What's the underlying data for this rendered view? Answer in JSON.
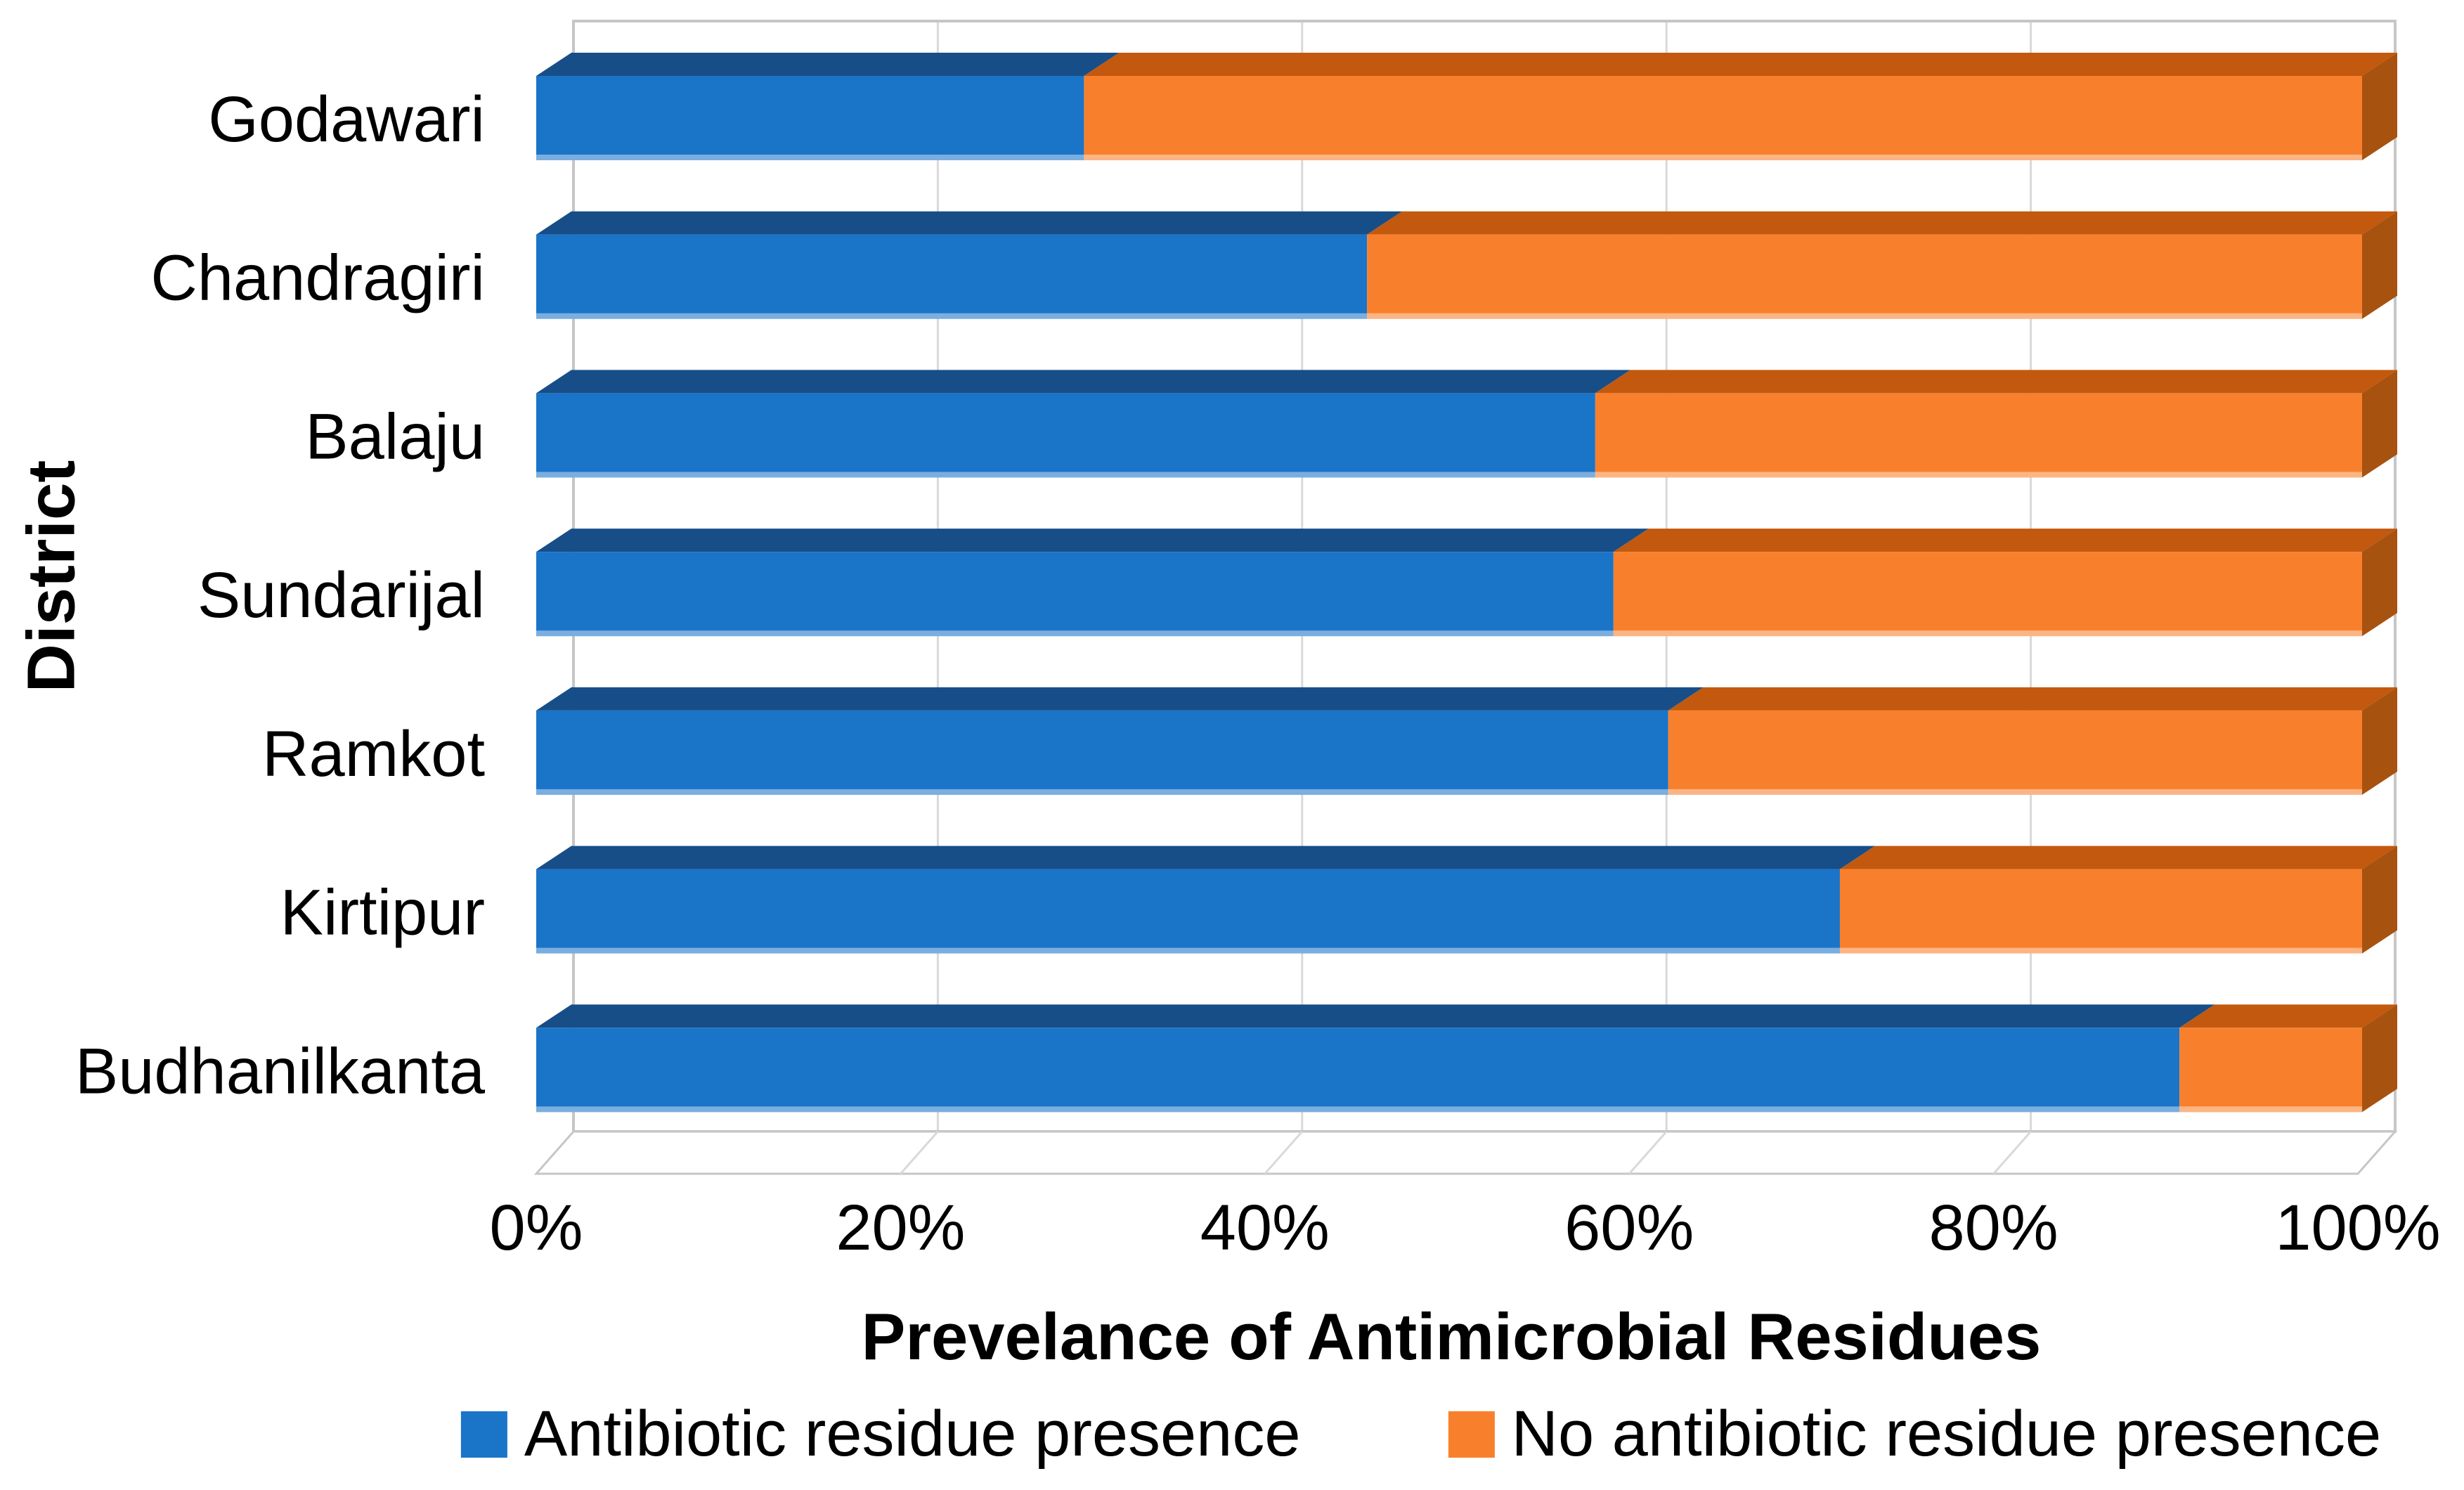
{
  "background": "#FFFFFF",
  "chart_data": {
    "type": "bar",
    "subtype": "stacked-100",
    "orientation": "horizontal",
    "style": "3d",
    "title": "",
    "xlabel": "Prevelance of Antimicrobial Residues",
    "ylabel": "District",
    "categories": [
      "Godawari",
      "Chandragiri",
      "Balaju",
      "Sundarijal",
      "Ramkot",
      "Kirtipur",
      "Budhanilkanta"
    ],
    "series": [
      {
        "name": "Antibiotic residue presence",
        "color": "#1A74C8",
        "color_top": "#174E88",
        "values": [
          30,
          45.5,
          58,
          59,
          62,
          71.4,
          90
        ]
      },
      {
        "name": "No antibiotic residue presence",
        "color": "#F8802D",
        "color_top": "#C2590E",
        "color_cap": "#A85210",
        "values": [
          70,
          54.5,
          42,
          41,
          38,
          28.6,
          10
        ]
      }
    ],
    "x_ticks": [
      "0%",
      "20%",
      "40%",
      "60%",
      "80%",
      "100%"
    ],
    "xlim": [
      0,
      100
    ],
    "grid": true,
    "gridline_color": "#D9D9D9",
    "wall_color": "#C6C6C6",
    "legend_position": "bottom"
  }
}
